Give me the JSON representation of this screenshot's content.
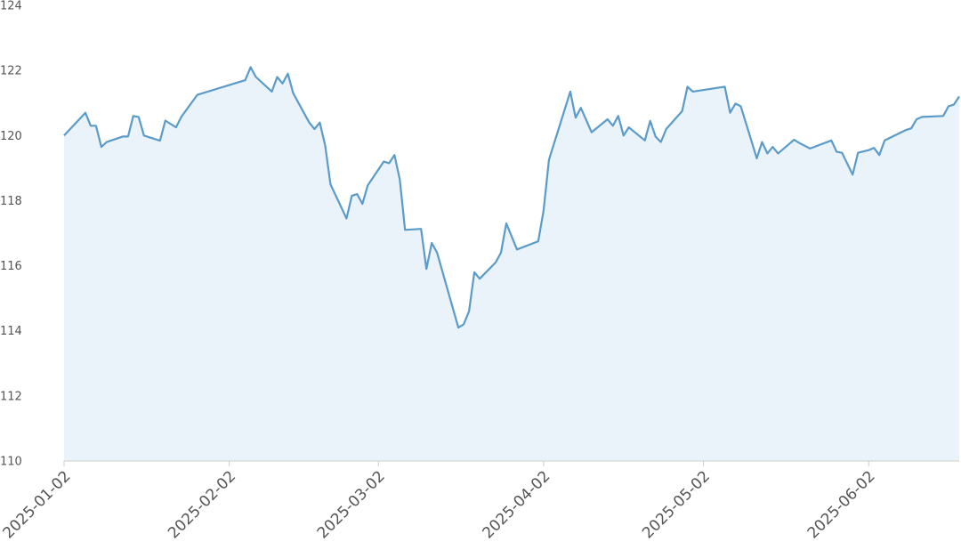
{
  "chart_data": {
    "type": "area",
    "title": "",
    "xlabel": "",
    "ylabel": "",
    "ylim": [
      110,
      124
    ],
    "xlim": [
      "2025-01-02",
      "2025-06-19"
    ],
    "grid": false,
    "colors": {
      "line": "#5b9bc9",
      "fill": "#eaf3fa",
      "axis": "#cccccc",
      "text": "#555555"
    },
    "y_ticks": [
      "110",
      "112",
      "114",
      "116",
      "118",
      "120",
      "122",
      "124"
    ],
    "x_ticks": [
      "2025-01-02",
      "2025-02-02",
      "2025-03-02",
      "2025-04-02",
      "2025-05-02",
      "2025-06-02"
    ],
    "series": [
      {
        "points": [
          [
            "2025-01-02",
            120.0
          ],
          [
            "2025-01-06",
            120.7
          ],
          [
            "2025-01-07",
            120.3
          ],
          [
            "2025-01-08",
            120.3
          ],
          [
            "2025-01-09",
            119.65
          ],
          [
            "2025-01-10",
            119.8
          ],
          [
            "2025-01-13",
            119.97
          ],
          [
            "2025-01-14",
            119.97
          ],
          [
            "2025-01-15",
            120.6
          ],
          [
            "2025-01-16",
            120.57
          ],
          [
            "2025-01-17",
            120.0
          ],
          [
            "2025-01-20",
            119.84
          ],
          [
            "2025-01-21",
            120.46
          ],
          [
            "2025-01-23",
            120.25
          ],
          [
            "2025-01-24",
            120.57
          ],
          [
            "2025-01-27",
            121.25
          ],
          [
            "2025-02-05",
            121.7
          ],
          [
            "2025-02-06",
            122.1
          ],
          [
            "2025-02-07",
            121.8
          ],
          [
            "2025-02-10",
            121.35
          ],
          [
            "2025-02-11",
            121.8
          ],
          [
            "2025-02-12",
            121.6
          ],
          [
            "2025-02-13",
            121.9
          ],
          [
            "2025-02-14",
            121.3
          ],
          [
            "2025-02-17",
            120.4
          ],
          [
            "2025-02-18",
            120.2
          ],
          [
            "2025-02-19",
            120.4
          ],
          [
            "2025-02-20",
            119.7
          ],
          [
            "2025-02-21",
            118.5
          ],
          [
            "2025-02-24",
            117.45
          ],
          [
            "2025-02-25",
            118.15
          ],
          [
            "2025-02-26",
            118.2
          ],
          [
            "2025-02-27",
            117.9
          ],
          [
            "2025-02-28",
            118.47
          ],
          [
            "2025-03-03",
            119.2
          ],
          [
            "2025-03-04",
            119.15
          ],
          [
            "2025-03-05",
            119.4
          ],
          [
            "2025-03-06",
            118.65
          ],
          [
            "2025-03-07",
            117.1
          ],
          [
            "2025-03-10",
            117.13
          ],
          [
            "2025-03-11",
            115.9
          ],
          [
            "2025-03-12",
            116.7
          ],
          [
            "2025-03-13",
            116.4
          ],
          [
            "2025-03-17",
            114.1
          ],
          [
            "2025-03-18",
            114.2
          ],
          [
            "2025-03-19",
            114.6
          ],
          [
            "2025-03-20",
            115.8
          ],
          [
            "2025-03-21",
            115.6
          ],
          [
            "2025-03-24",
            116.1
          ],
          [
            "2025-03-25",
            116.4
          ],
          [
            "2025-03-26",
            117.3
          ],
          [
            "2025-03-28",
            116.5
          ],
          [
            "2025-04-01",
            116.75
          ],
          [
            "2025-04-02",
            117.7
          ],
          [
            "2025-04-03",
            119.25
          ],
          [
            "2025-04-07",
            121.35
          ],
          [
            "2025-04-08",
            120.55
          ],
          [
            "2025-04-09",
            120.85
          ],
          [
            "2025-04-11",
            120.1
          ],
          [
            "2025-04-14",
            120.5
          ],
          [
            "2025-04-15",
            120.3
          ],
          [
            "2025-04-16",
            120.6
          ],
          [
            "2025-04-17",
            120.0
          ],
          [
            "2025-04-18",
            120.25
          ],
          [
            "2025-04-21",
            119.85
          ],
          [
            "2025-04-22",
            120.45
          ],
          [
            "2025-04-23",
            119.97
          ],
          [
            "2025-04-24",
            119.8
          ],
          [
            "2025-04-25",
            120.2
          ],
          [
            "2025-04-28",
            120.75
          ],
          [
            "2025-04-29",
            121.5
          ],
          [
            "2025-04-30",
            121.35
          ],
          [
            "2025-05-06",
            121.5
          ],
          [
            "2025-05-07",
            120.7
          ],
          [
            "2025-05-08",
            120.98
          ],
          [
            "2025-05-09",
            120.9
          ],
          [
            "2025-05-12",
            119.3
          ],
          [
            "2025-05-13",
            119.8
          ],
          [
            "2025-05-14",
            119.45
          ],
          [
            "2025-05-15",
            119.65
          ],
          [
            "2025-05-16",
            119.45
          ],
          [
            "2025-05-19",
            119.87
          ],
          [
            "2025-05-20",
            119.77
          ],
          [
            "2025-05-22",
            119.6
          ],
          [
            "2025-05-26",
            119.85
          ],
          [
            "2025-05-27",
            119.5
          ],
          [
            "2025-05-28",
            119.47
          ],
          [
            "2025-05-30",
            118.8
          ],
          [
            "2025-05-31",
            119.47
          ],
          [
            "2025-06-02",
            119.55
          ],
          [
            "2025-06-03",
            119.62
          ],
          [
            "2025-06-04",
            119.4
          ],
          [
            "2025-06-05",
            119.85
          ],
          [
            "2025-06-09",
            120.17
          ],
          [
            "2025-06-10",
            120.22
          ],
          [
            "2025-06-11",
            120.5
          ],
          [
            "2025-06-12",
            120.57
          ],
          [
            "2025-06-16",
            120.6
          ],
          [
            "2025-06-17",
            120.9
          ],
          [
            "2025-06-18",
            120.95
          ],
          [
            "2025-06-19",
            121.2
          ]
        ]
      }
    ]
  }
}
